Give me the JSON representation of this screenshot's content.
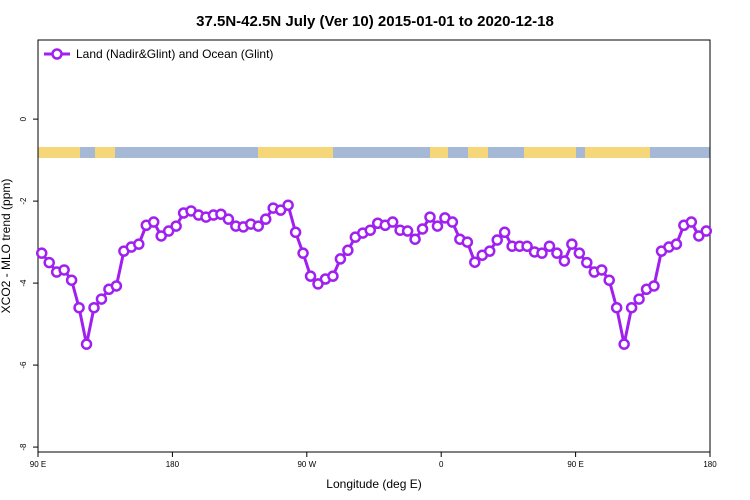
{
  "chart_data": {
    "type": "line",
    "title": "37.5N-42.5N July (Ver 10)   2015-01-01 to 2020-12-18",
    "xlabel": "Longitude (deg E)",
    "ylabel": "XCO2 - MLO trend (ppm)",
    "xlim": [
      90,
      540
    ],
    "ylim": [
      -8.12,
      1.93
    ],
    "xticks": [
      {
        "value": 90,
        "label": "90 E"
      },
      180,
      {
        "value": 270,
        "label": "90 W"
      },
      {
        "value": 360,
        "label": "0"
      },
      {
        "value": 450,
        "label": "90 E"
      },
      {
        "value": 540,
        "label": "180"
      }
    ],
    "yticks": [
      0,
      -2,
      -4,
      -6,
      -8
    ],
    "legend": "top-left",
    "x": [
      92.5,
      97.5,
      102.5,
      107.5,
      112.5,
      117.5,
      122.5,
      127.5,
      132.5,
      137.5,
      142.5,
      147.5,
      152.5,
      157.5,
      162.5,
      167.5,
      172.5,
      177.5,
      182.5,
      187.5,
      192.5,
      197.5,
      202.5,
      207.5,
      212.5,
      217.5,
      222.5,
      227.5,
      232.5,
      237.5,
      242.5,
      247.5,
      252.5,
      257.5,
      262.5,
      267.5,
      272.5,
      277.5,
      282.5,
      287.5,
      292.5,
      297.5,
      302.5,
      307.5,
      312.5,
      317.5,
      322.5,
      327.5,
      332.5,
      337.5,
      342.5,
      347.5,
      352.5,
      357.5,
      362.5,
      367.5,
      372.5,
      377.5,
      382.5,
      387.5,
      392.5,
      397.5,
      402.5,
      407.5,
      412.5,
      417.5,
      422.5,
      427.5,
      432.5,
      437.5,
      442.5,
      447.5,
      452.5,
      457.5,
      462.5,
      467.5,
      472.5,
      477.5,
      482.5,
      487.5,
      492.5,
      497.5,
      502.5,
      507.5,
      512.5,
      517.5,
      522.5,
      527.5,
      532.5,
      537.5
    ],
    "series": [
      {
        "name": "Land (Nadir&Glint) and Ocean (Glint)",
        "color": "#a020f0",
        "values": [
          -3.27,
          -3.5,
          -3.73,
          -3.68,
          -3.93,
          -4.6,
          -5.49,
          -4.6,
          -4.39,
          -4.15,
          -4.07,
          -3.22,
          -3.12,
          -3.05,
          -2.59,
          -2.51,
          -2.85,
          -2.73,
          -2.61,
          -2.29,
          -2.24,
          -2.34,
          -2.39,
          -2.34,
          -2.32,
          -2.44,
          -2.61,
          -2.63,
          -2.56,
          -2.61,
          -2.44,
          -2.17,
          -2.22,
          -2.1,
          -2.76,
          -3.27,
          -3.83,
          -4.02,
          -3.9,
          -3.83,
          -3.41,
          -3.2,
          -2.88,
          -2.78,
          -2.71,
          -2.54,
          -2.59,
          -2.51,
          -2.71,
          -2.73,
          -2.93,
          -2.68,
          -2.39,
          -2.61,
          -2.41,
          -2.51,
          -2.93,
          -3.0,
          -3.49,
          -3.32,
          -3.22,
          -2.95,
          -2.76,
          -3.1,
          -3.1,
          -3.1,
          -3.24,
          -3.27,
          -3.1,
          -3.27,
          -3.46,
          -3.05,
          -3.27,
          -3.5,
          -3.73,
          -3.68,
          -3.93,
          -4.6,
          -5.49,
          -4.6,
          -4.39,
          -4.15,
          -4.07,
          -3.22,
          -3.12,
          -3.05,
          -2.59,
          -2.51,
          -2.85,
          -2.73
        ]
      }
    ]
  }
}
